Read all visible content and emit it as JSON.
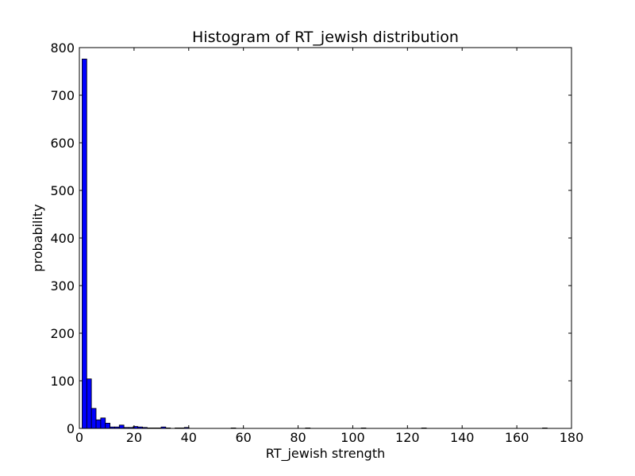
{
  "chart_data": {
    "type": "bar",
    "title": "Histogram of RT_jewish  distribution",
    "xlabel": "RT_jewish  strength",
    "ylabel": "probability",
    "xlim": [
      0,
      180
    ],
    "ylim": [
      0,
      800
    ],
    "xticks": [
      0,
      20,
      40,
      60,
      80,
      100,
      120,
      140,
      160,
      180
    ],
    "yticks": [
      0,
      100,
      200,
      300,
      400,
      500,
      600,
      700,
      800
    ],
    "bar_color": "#0000ff",
    "edge_color": "#000000",
    "bins": [
      {
        "x0": 1.0,
        "x1": 2.7,
        "count": 776
      },
      {
        "x0": 2.7,
        "x1": 4.4,
        "count": 104
      },
      {
        "x0": 4.4,
        "x1": 6.1,
        "count": 42
      },
      {
        "x0": 6.1,
        "x1": 7.8,
        "count": 18
      },
      {
        "x0": 7.8,
        "x1": 9.5,
        "count": 22
      },
      {
        "x0": 9.5,
        "x1": 11.2,
        "count": 11
      },
      {
        "x0": 11.2,
        "x1": 12.9,
        "count": 3
      },
      {
        "x0": 12.9,
        "x1": 14.6,
        "count": 3
      },
      {
        "x0": 14.6,
        "x1": 16.3,
        "count": 7
      },
      {
        "x0": 16.3,
        "x1": 18.0,
        "count": 2
      },
      {
        "x0": 18.0,
        "x1": 19.7,
        "count": 2
      },
      {
        "x0": 19.7,
        "x1": 21.4,
        "count": 4
      },
      {
        "x0": 21.4,
        "x1": 23.1,
        "count": 3
      },
      {
        "x0": 23.1,
        "x1": 24.8,
        "count": 2
      },
      {
        "x0": 24.8,
        "x1": 26.5,
        "count": 1
      },
      {
        "x0": 26.5,
        "x1": 28.2,
        "count": 1
      },
      {
        "x0": 28.2,
        "x1": 29.9,
        "count": 1
      },
      {
        "x0": 29.9,
        "x1": 31.6,
        "count": 3
      },
      {
        "x0": 31.6,
        "x1": 33.3,
        "count": 1
      },
      {
        "x0": 35.0,
        "x1": 36.7,
        "count": 1
      },
      {
        "x0": 36.7,
        "x1": 38.4,
        "count": 1
      },
      {
        "x0": 38.4,
        "x1": 40.1,
        "count": 2
      },
      {
        "x0": 55.5,
        "x1": 57.2,
        "count": 1
      },
      {
        "x0": 82.7,
        "x1": 84.4,
        "count": 1
      },
      {
        "x0": 103.1,
        "x1": 104.8,
        "count": 1
      },
      {
        "x0": 125.2,
        "x1": 126.9,
        "count": 1
      },
      {
        "x0": 169.4,
        "x1": 171.1,
        "count": 1
      }
    ]
  }
}
